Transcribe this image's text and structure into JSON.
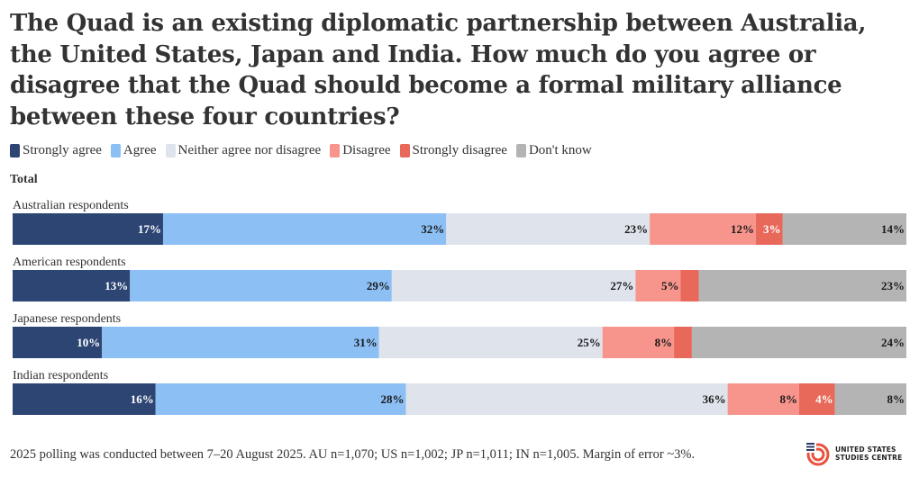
{
  "chart_data": {
    "type": "bar",
    "orientation": "horizontal",
    "stacked": true,
    "percent_stacked": true,
    "title": "The Quad is an existing diplomatic partnership between Australia, the United States, Japan and India. How much do you agree or disagree that the Quad should become a formal military alliance between these four countries?",
    "section_label": "Total",
    "categories": [
      "Australian respondents",
      "American respondents",
      "Japanese respondents",
      "Indian respondents"
    ],
    "series": [
      {
        "name": "Strongly agree",
        "color": "#2c4573",
        "label_color": "#ffffff",
        "values": [
          17,
          13,
          10,
          16
        ]
      },
      {
        "name": "Agree",
        "color": "#8cc0f5",
        "label_color": "#1a1a1a",
        "values": [
          32,
          29,
          31,
          28
        ]
      },
      {
        "name": "Neither agree nor disagree",
        "color": "#dfe3ec",
        "label_color": "#1a1a1a",
        "values": [
          23,
          27,
          25,
          36
        ]
      },
      {
        "name": "Disagree",
        "color": "#f7958d",
        "label_color": "#1a1a1a",
        "values": [
          12,
          5,
          8,
          8
        ]
      },
      {
        "name": "Strongly disagree",
        "color": "#e8685a",
        "label_color": "#ffffff",
        "values": [
          3,
          2,
          2,
          4
        ]
      },
      {
        "name": "Don't know",
        "color": "#b4b4b4",
        "label_color": "#1a1a1a",
        "values": [
          14,
          23,
          24,
          8
        ]
      }
    ],
    "labels": [
      [
        "17%",
        "32%",
        "23%",
        "12%",
        "3%",
        "14%"
      ],
      [
        "13%",
        "29%",
        "27%",
        "5%",
        "",
        "23%"
      ],
      [
        "10%",
        "31%",
        "25%",
        "8%",
        "",
        "24%"
      ],
      [
        "16%",
        "28%",
        "36%",
        "8%",
        "4%",
        "8%"
      ]
    ],
    "xlim": [
      0,
      100
    ],
    "legend_position": "top-left"
  },
  "footer": {
    "note": "2025 polling was conducted between 7–20 August 2025. AU n=1,070; US n=1,002; JP n=1,011; IN n=1,005. Margin of error ~3%."
  },
  "logo": {
    "line1": "UNITED STATES",
    "line2": "STUDIES CENTRE",
    "colors": {
      "primary": "#e8533f",
      "secondary": "#2c3e66"
    }
  }
}
